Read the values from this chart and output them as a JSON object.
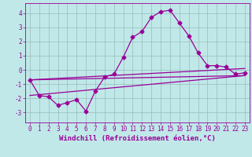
{
  "title": "",
  "xlabel": "Windchill (Refroidissement éolien,°C)",
  "bg_color": "#c0e8e8",
  "line_color": "#990099",
  "grid_color": "#99bbbb",
  "xlim": [
    -0.5,
    23.5
  ],
  "ylim": [
    -3.7,
    4.7
  ],
  "yticks": [
    -3,
    -2,
    -1,
    0,
    1,
    2,
    3,
    4
  ],
  "xticks": [
    0,
    1,
    2,
    3,
    4,
    5,
    6,
    7,
    8,
    9,
    10,
    11,
    12,
    13,
    14,
    15,
    16,
    17,
    18,
    19,
    20,
    21,
    22,
    23
  ],
  "line1_x": [
    0,
    1,
    2,
    3,
    4,
    5,
    6,
    7,
    8,
    9,
    10,
    11,
    12,
    13,
    14,
    15,
    16,
    17,
    18,
    19,
    20,
    21,
    22,
    23
  ],
  "line1_y": [
    -0.7,
    -1.8,
    -1.9,
    -2.5,
    -2.3,
    -2.1,
    -2.9,
    -1.5,
    -0.5,
    -0.3,
    0.9,
    2.3,
    2.7,
    3.7,
    4.1,
    4.2,
    3.3,
    2.4,
    1.2,
    0.3,
    0.3,
    0.2,
    -0.3,
    -0.2
  ],
  "line2_x": [
    0,
    23
  ],
  "line2_y": [
    -0.7,
    0.1
  ],
  "line3_x": [
    0,
    23
  ],
  "line3_y": [
    -0.7,
    -0.4
  ],
  "line4_x": [
    0,
    23
  ],
  "line4_y": [
    -1.8,
    -0.4
  ],
  "marker": "D",
  "marker_size": 2.5,
  "linewidth": 0.9,
  "tick_fontsize": 5.5,
  "label_fontsize": 6.5
}
